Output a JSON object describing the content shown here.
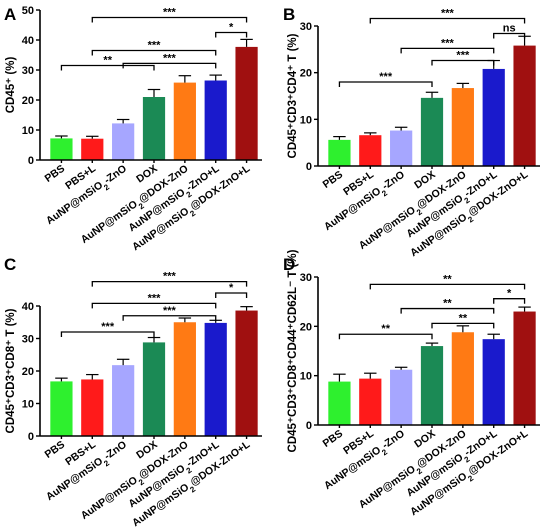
{
  "colors": [
    "#2ef02e",
    "#ff1a1a",
    "#a6a6ff",
    "#1b8a55",
    "#ff7a14",
    "#1a1acc",
    "#a01010"
  ],
  "chart_data": [
    {
      "id": "A",
      "type": "bar",
      "panel": "A",
      "ylabel": "CD45⁺ (%)",
      "ylim": [
        0,
        50
      ],
      "yticks": [
        0,
        10,
        20,
        30,
        40,
        50
      ],
      "categories": [
        "PBS",
        "PBS+L",
        "AuNP@mSiO₂-ZnO",
        "DOX",
        "AuNP@mSiO₂@DOX-ZnO",
        "AuNP@mSiO₂-ZnO+L",
        "AuNP@mSiO₂@DOX-ZnO+L"
      ],
      "values": [
        7.2,
        7.1,
        12.2,
        21.0,
        25.8,
        26.5,
        37.7
      ],
      "errors": [
        0.8,
        0.8,
        1.3,
        2.5,
        2.3,
        1.8,
        2.5
      ],
      "annotations": [
        {
          "from": 0,
          "to": 3,
          "y": 31.5,
          "label": "**"
        },
        {
          "from": 2,
          "to": 5,
          "y": 32.2,
          "label": "***"
        },
        {
          "from": 1,
          "to": 5,
          "y": 36.5,
          "label": "***"
        },
        {
          "from": 5,
          "to": 6,
          "y": 42.5,
          "label": "*"
        },
        {
          "from": 1,
          "to": 6,
          "y": 47.5,
          "label": "***"
        }
      ]
    },
    {
      "id": "B",
      "type": "bar",
      "panel": "B",
      "ylabel": "CD45⁺CD3⁺CD4⁺ T (%)",
      "ylim": [
        0,
        30
      ],
      "yticks": [
        0,
        10,
        20,
        30
      ],
      "categories": [
        "PBS",
        "PBS+L",
        "AuNP@mSiO₂-ZnO",
        "DOX",
        "AuNP@mSiO₂@DOX-ZnO",
        "AuNP@mSiO₂-ZnO+L",
        "AuNP@mSiO₂@DOX-ZnO+L"
      ],
      "values": [
        5.6,
        6.6,
        7.6,
        14.6,
        16.7,
        20.8,
        25.8
      ],
      "errors": [
        0.7,
        0.5,
        0.7,
        1.2,
        1.0,
        1.8,
        2.0
      ],
      "annotations": [
        {
          "from": 0,
          "to": 3,
          "y": 18.0,
          "label": "***"
        },
        {
          "from": 3,
          "to": 5,
          "y": 22.6,
          "label": "***"
        },
        {
          "from": 2,
          "to": 5,
          "y": 25.2,
          "label": "***"
        },
        {
          "from": 5,
          "to": 6,
          "y": 28.4,
          "label": "ns"
        },
        {
          "from": 1,
          "to": 6,
          "y": 31.6,
          "label": "***"
        }
      ]
    },
    {
      "id": "C",
      "type": "bar",
      "panel": "C",
      "ylabel": "CD45⁺CD3⁺CD8⁺ T (%)",
      "ylim": [
        0,
        40
      ],
      "yticks": [
        0,
        10,
        20,
        30,
        40
      ],
      "categories": [
        "PBS",
        "PBS+L",
        "AuNP@mSiO₂-ZnO",
        "DOX",
        "AuNP@mSiO₂@DOX-ZnO",
        "AuNP@mSiO₂-ZnO+L",
        "AuNP@mSiO₂@DOX-ZnO+L"
      ],
      "values": [
        16.8,
        17.4,
        21.8,
        28.8,
        35.0,
        34.8,
        38.6
      ],
      "errors": [
        1.0,
        1.5,
        1.8,
        1.5,
        1.3,
        0.8,
        1.2
      ],
      "annotations": [
        {
          "from": 0,
          "to": 3,
          "y": 32.0,
          "label": "***"
        },
        {
          "from": 2,
          "to": 5,
          "y": 37.0,
          "label": "***"
        },
        {
          "from": 1,
          "to": 5,
          "y": 40.8,
          "label": "***"
        },
        {
          "from": 5,
          "to": 6,
          "y": 44.0,
          "label": "*"
        },
        {
          "from": 1,
          "to": 6,
          "y": 47.5,
          "label": "***"
        }
      ]
    },
    {
      "id": "D",
      "type": "bar",
      "panel": "D",
      "ylabel": "CD45⁺CD3⁺CD8⁺CD44⁺CD62L⁻ T (%)",
      "ylim": [
        0,
        30
      ],
      "yticks": [
        0,
        10,
        20,
        30
      ],
      "categories": [
        "PBS",
        "PBS+L",
        "AuNP@mSiO₂-ZnO",
        "DOX",
        "AuNP@mSiO₂@DOX-ZnO",
        "AuNP@mSiO₂-ZnO+L",
        "AuNP@mSiO₂@DOX-ZnO+L"
      ],
      "values": [
        8.8,
        9.4,
        11.2,
        16.0,
        18.8,
        17.4,
        23.0
      ],
      "errors": [
        1.5,
        1.1,
        0.5,
        0.6,
        1.3,
        1.0,
        0.9
      ],
      "annotations": [
        {
          "from": 0,
          "to": 3,
          "y": 18.4,
          "label": "**"
        },
        {
          "from": 3,
          "to": 5,
          "y": 20.6,
          "label": "**"
        },
        {
          "from": 2,
          "to": 5,
          "y": 23.6,
          "label": "**"
        },
        {
          "from": 5,
          "to": 6,
          "y": 25.6,
          "label": "*"
        },
        {
          "from": 1,
          "to": 6,
          "y": 28.5,
          "label": "**"
        }
      ]
    }
  ]
}
